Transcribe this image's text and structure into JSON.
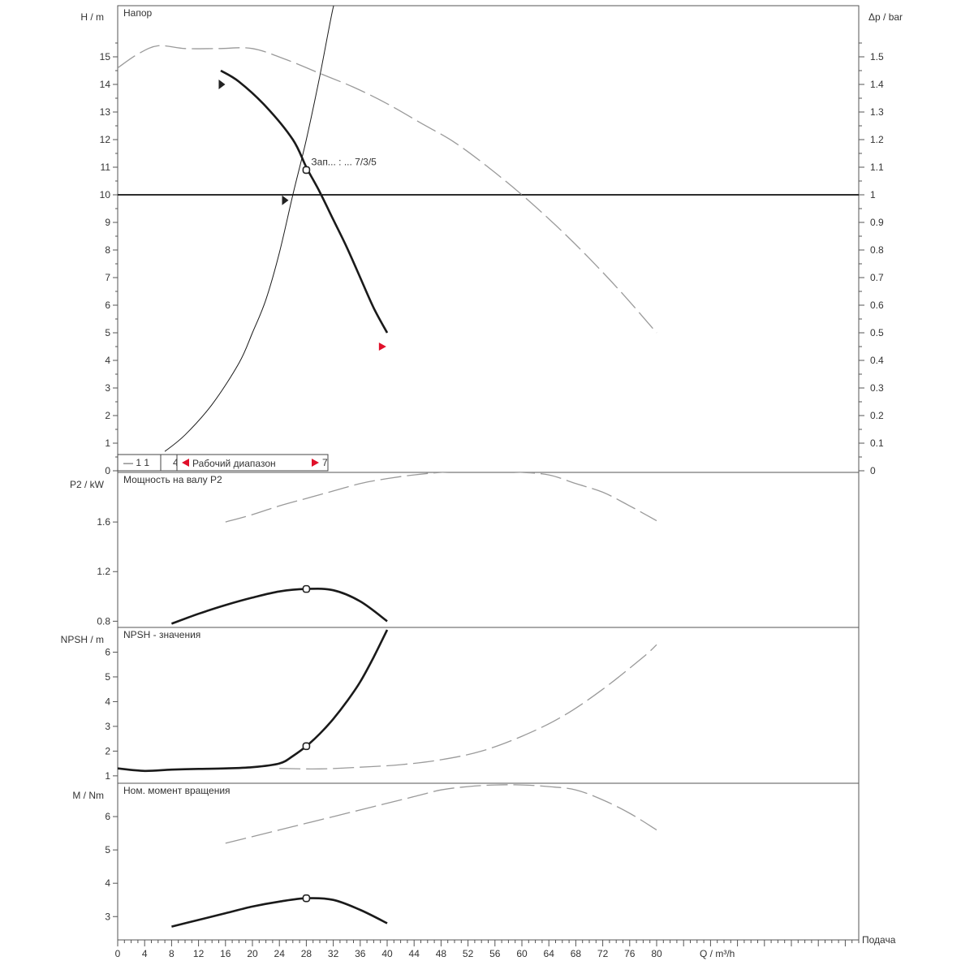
{
  "chart_data": [
    {
      "type": "line",
      "title": "Напор",
      "ylabel": "H / m",
      "ylabel_right": "Δp / bar",
      "xlabel": "Подача",
      "xunit": "Q / m³/h",
      "xlim": [
        0,
        110
      ],
      "ylim": [
        0,
        17
      ],
      "ylim_right": [
        0,
        1.7
      ],
      "yticks": [
        0,
        1,
        2,
        3,
        4,
        5,
        6,
        7,
        8,
        9,
        10,
        11,
        12,
        13,
        14,
        15
      ],
      "yticks_right": [
        "0",
        "0.1",
        "0.2",
        "0.3",
        "0.4",
        "0.5",
        "0.6",
        "0.7",
        "0.8",
        "0.9",
        "1",
        "1.1",
        "1.2",
        "1.3",
        "1.4",
        "1.5"
      ],
      "grid": false,
      "series": [
        {
          "style": "solid-bold",
          "x": [
            15.3,
            18,
            22,
            26,
            28,
            30,
            32,
            34,
            36,
            38,
            40
          ],
          "y": [
            14.5,
            14.1,
            13.2,
            12.0,
            11.0,
            10.1,
            9.1,
            8.1,
            7.0,
            5.9,
            5.0
          ]
        },
        {
          "style": "solid-thin",
          "x": [
            7,
            10,
            14,
            18,
            20,
            22,
            24,
            26,
            28,
            30,
            32,
            32.6
          ],
          "y": [
            0.7,
            1.3,
            2.4,
            3.9,
            5.0,
            6.2,
            7.9,
            10.0,
            12.0,
            14.3,
            16.8,
            17.0
          ]
        },
        {
          "style": "dashed-grey",
          "x": [
            0,
            3,
            6,
            10,
            15,
            20,
            25,
            30,
            35,
            40,
            45,
            50,
            55,
            60,
            65,
            70,
            75,
            80
          ],
          "y": [
            14.6,
            15.1,
            15.4,
            15.3,
            15.3,
            15.3,
            14.9,
            14.4,
            13.9,
            13.3,
            12.6,
            11.9,
            11.0,
            10.0,
            8.9,
            7.7,
            6.4,
            5.0
          ]
        }
      ],
      "hline": {
        "y": 10
      },
      "points": [
        {
          "x": 28,
          "y": 10.9,
          "kind": "operating-point"
        },
        {
          "x": 15.6,
          "y": 14.0,
          "kind": "marker"
        },
        {
          "x": 25,
          "y": 9.8,
          "kind": "marker"
        },
        {
          "x": 39.5,
          "y": 4.5,
          "kind": "marker-red"
        }
      ],
      "annotation": "Зап... : ... 7/3/5",
      "legend": [
        {
          "text": "— 1 1"
        },
        {
          "text": "4"
        },
        {
          "text": "Рабочий диапазон"
        },
        {
          "text": "7"
        }
      ]
    },
    {
      "type": "line",
      "title": "Мощность на валу P2",
      "ylabel": "P2 / kW",
      "xlim": [
        0,
        110
      ],
      "ylim": [
        0.75,
        2.0
      ],
      "yticks": [
        0.8,
        1.2,
        1.6
      ],
      "ytick_labels": [
        "0.8",
        "1.2",
        "1.6"
      ],
      "series": [
        {
          "style": "solid-bold",
          "x": [
            8,
            12,
            16,
            20,
            24,
            28,
            32,
            36,
            40
          ],
          "y": [
            0.78,
            0.86,
            0.93,
            0.99,
            1.04,
            1.06,
            1.05,
            0.96,
            0.8
          ]
        },
        {
          "style": "dashed-grey",
          "x": [
            16,
            20,
            24,
            28,
            32,
            36,
            40,
            44,
            48,
            52,
            56,
            60,
            64,
            68,
            72,
            76,
            80
          ],
          "y": [
            1.6,
            1.66,
            1.73,
            1.79,
            1.85,
            1.91,
            1.95,
            1.98,
            2.0,
            2.01,
            2.01,
            2.0,
            1.98,
            1.91,
            1.84,
            1.73,
            1.61
          ]
        }
      ],
      "points": [
        {
          "x": 28,
          "y": 1.06,
          "kind": "operating-point"
        }
      ]
    },
    {
      "type": "line",
      "title": "NPSH - значения",
      "ylabel": "NPSH / m",
      "xlim": [
        0,
        110
      ],
      "ylim": [
        0.7,
        7.0
      ],
      "yticks": [
        1,
        2,
        3,
        4,
        5,
        6
      ],
      "ytick_labels": [
        "1",
        "2",
        "3",
        "4",
        "5",
        "6"
      ],
      "series": [
        {
          "style": "solid-bold",
          "x": [
            0,
            4,
            8,
            12,
            16,
            20,
            24,
            26,
            28,
            30,
            32,
            34,
            36,
            38,
            40
          ],
          "y": [
            1.3,
            1.2,
            1.25,
            1.28,
            1.3,
            1.35,
            1.5,
            1.8,
            2.2,
            2.7,
            3.3,
            4.0,
            4.8,
            5.8,
            6.9
          ]
        },
        {
          "style": "dashed-grey",
          "x": [
            24,
            30,
            36,
            42,
            48,
            54,
            60,
            66,
            72,
            78,
            80
          ],
          "y": [
            1.3,
            1.28,
            1.35,
            1.45,
            1.65,
            2.0,
            2.6,
            3.4,
            4.5,
            5.8,
            6.3
          ]
        }
      ],
      "points": [
        {
          "x": 28,
          "y": 2.2,
          "kind": "operating-point"
        }
      ]
    },
    {
      "type": "line",
      "title": "Ном. момент вращения",
      "ylabel": "M / Nm",
      "xlabel": "Подача",
      "xunit": "Q / m³/h",
      "xlim": [
        0,
        110
      ],
      "xticks": [
        0,
        4,
        8,
        12,
        16,
        20,
        24,
        28,
        32,
        36,
        40,
        44,
        48,
        52,
        56,
        60,
        64,
        68,
        72,
        76,
        80
      ],
      "ylim": [
        2.3,
        7.0
      ],
      "yticks": [
        3,
        4,
        5,
        6
      ],
      "ytick_labels": [
        "3",
        "4",
        "5",
        "6"
      ],
      "series": [
        {
          "style": "solid-bold",
          "x": [
            8,
            12,
            16,
            20,
            24,
            28,
            32,
            36,
            40
          ],
          "y": [
            2.7,
            2.9,
            3.1,
            3.3,
            3.45,
            3.55,
            3.5,
            3.2,
            2.8
          ]
        },
        {
          "style": "dashed-grey",
          "x": [
            16,
            20,
            24,
            28,
            32,
            36,
            40,
            44,
            48,
            52,
            56,
            60,
            64,
            68,
            72,
            76,
            80
          ],
          "y": [
            5.2,
            5.4,
            5.6,
            5.8,
            6.0,
            6.2,
            6.4,
            6.6,
            6.8,
            6.9,
            6.95,
            6.95,
            6.9,
            6.8,
            6.5,
            6.1,
            5.6
          ]
        }
      ],
      "points": [
        {
          "x": 28,
          "y": 3.55,
          "kind": "operating-point"
        }
      ]
    }
  ]
}
